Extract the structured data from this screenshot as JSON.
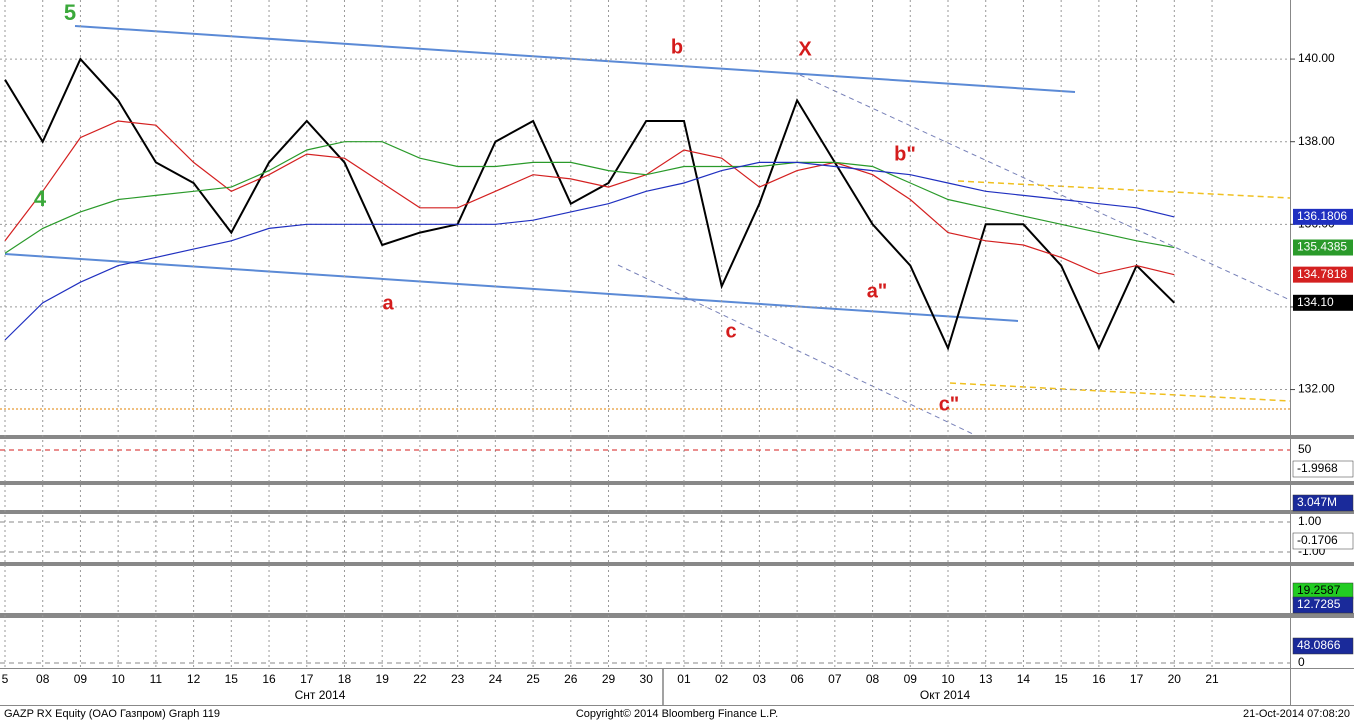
{
  "chart_data": {
    "type": "line",
    "title": "GAZP RX Equity (OAO Газпром) Graph 119",
    "copyright": "Copyright© 2014 Bloomberg Finance L.P.",
    "timestamp": "21-Oct-2014 07:08:20",
    "categories": [
      "5",
      "08",
      "09",
      "10",
      "11",
      "12",
      "15",
      "16",
      "17",
      "18",
      "19",
      "22",
      "23",
      "24",
      "25",
      "26",
      "29",
      "30",
      "01",
      "02",
      "03",
      "06",
      "07",
      "08",
      "09",
      "10",
      "13",
      "14",
      "15",
      "16",
      "17",
      "20",
      "21"
    ],
    "month_labels": [
      "Снт 2014",
      "Окт 2014"
    ],
    "ylim": [
      130.9,
      141.43
    ],
    "yticks": [
      {
        "value": 132,
        "label": "132.00"
      },
      {
        "value": 134,
        "label": "134.00"
      },
      {
        "value": 136,
        "label": "136.00"
      },
      {
        "value": 138,
        "label": "138.00"
      },
      {
        "value": 140,
        "label": "140.00"
      }
    ],
    "grid": true,
    "series": [
      {
        "name": "GAZP",
        "color": "#000000",
        "values": [
          139.5,
          138,
          140,
          139,
          137.5,
          137,
          135.8,
          137.5,
          138.5,
          137.5,
          135.5,
          135.8,
          136,
          138,
          138.5,
          136.5,
          137,
          138.5,
          138.5,
          134.5,
          136.5,
          139,
          137.5,
          136,
          135,
          133,
          136,
          136,
          135,
          133,
          135,
          134.1,
          null
        ]
      },
      {
        "name": "MA-short",
        "color": "#d42020",
        "values": [
          135.6,
          136.8,
          138.1,
          138.5,
          138.4,
          137.5,
          136.8,
          137.2,
          137.7,
          137.6,
          137,
          136.4,
          136.4,
          136.8,
          137.2,
          137.1,
          136.9,
          137.2,
          137.8,
          137.6,
          136.9,
          137.3,
          137.5,
          137.2,
          136.6,
          135.8,
          135.6,
          135.5,
          135.2,
          134.8,
          135,
          134.78,
          null
        ]
      },
      {
        "name": "MA-mid",
        "color": "#2a9a2a",
        "values": [
          135.3,
          135.9,
          136.3,
          136.6,
          136.7,
          136.8,
          136.9,
          137.3,
          137.8,
          138,
          138,
          137.6,
          137.4,
          137.4,
          137.5,
          137.5,
          137.3,
          137.2,
          137.4,
          137.4,
          137.4,
          137.5,
          137.5,
          137.4,
          137,
          136.6,
          136.4,
          136.2,
          136,
          135.8,
          135.6,
          135.44,
          null
        ]
      },
      {
        "name": "MA-long",
        "color": "#2030c0",
        "values": [
          133.2,
          134.1,
          134.6,
          135,
          135.2,
          135.4,
          135.6,
          135.9,
          136,
          136,
          136,
          136,
          136,
          136,
          136.1,
          136.3,
          136.5,
          136.8,
          137,
          137.3,
          137.5,
          137.5,
          137.4,
          137.3,
          137.2,
          137,
          136.8,
          136.7,
          136.6,
          136.5,
          136.4,
          136.18,
          null
        ]
      }
    ],
    "last_values": [
      136.1806,
      135.4385,
      134.7818,
      {
        "value": 134.1,
        "label": "134.10"
      }
    ],
    "annotations": [
      "5",
      "4",
      "a",
      "b",
      "c",
      "X",
      "b\"",
      "a\"",
      "c\""
    ],
    "panels": [
      {
        "ticks": [
          50
        ],
        "tags": [
          -1.9968
        ]
      },
      {
        "ticks": [],
        "tags": [
          {
            "value": 3047000,
            "label": "3.047M"
          }
        ]
      },
      {
        "ticks": [
          {
            "value": 1,
            "label": "1.00"
          },
          {
            "value": -1,
            "label": "-1.00"
          }
        ],
        "tags": [
          -0.1706
        ]
      },
      {
        "ticks": [],
        "tags": [
          19.2587,
          12.7285
        ]
      },
      {
        "ticks": [
          0
        ],
        "tags": [
          48.0866
        ]
      }
    ]
  }
}
